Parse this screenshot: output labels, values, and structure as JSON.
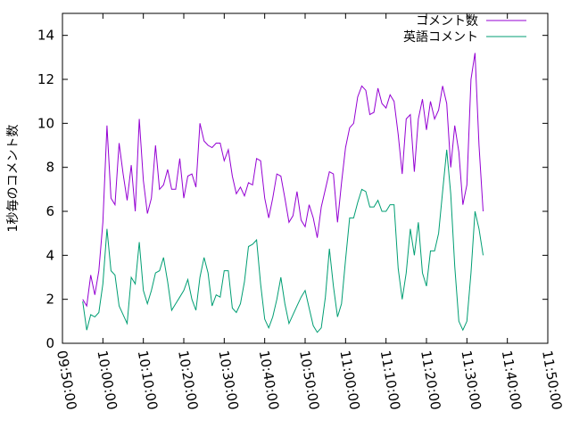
{
  "chart_data": {
    "type": "line",
    "ylabel": "1秒毎のコメント数",
    "xlabel": "",
    "ylim": [
      0,
      15
    ],
    "xlim": [
      "09:50:00",
      "11:50:00"
    ],
    "x_ticks": [
      "09:50:00",
      "10:00:00",
      "10:10:00",
      "10:20:00",
      "10:30:00",
      "10:40:00",
      "10:50:00",
      "11:00:00",
      "11:10:00",
      "11:20:00",
      "11:30:00",
      "11:40:00",
      "11:50:00"
    ],
    "y_ticks": [
      0,
      2,
      4,
      6,
      8,
      10,
      12,
      14
    ],
    "legend_position": "top-right",
    "grid": false,
    "series": [
      {
        "name": "コメント数",
        "color": "#9400d3",
        "points": [
          [
            "09:55:00",
            2.0
          ],
          [
            "09:56:00",
            1.7
          ],
          [
            "09:57:00",
            3.1
          ],
          [
            "09:58:00",
            2.2
          ],
          [
            "09:59:00",
            3.3
          ],
          [
            "10:00:00",
            5.5
          ],
          [
            "10:01:00",
            9.9
          ],
          [
            "10:02:00",
            6.6
          ],
          [
            "10:03:00",
            6.3
          ],
          [
            "10:04:00",
            9.1
          ],
          [
            "10:05:00",
            7.7
          ],
          [
            "10:06:00",
            6.5
          ],
          [
            "10:07:00",
            8.1
          ],
          [
            "10:08:00",
            6.0
          ],
          [
            "10:09:00",
            10.2
          ],
          [
            "10:10:00",
            7.4
          ],
          [
            "10:11:00",
            5.9
          ],
          [
            "10:12:00",
            6.6
          ],
          [
            "10:13:00",
            9.0
          ],
          [
            "10:14:00",
            7.0
          ],
          [
            "10:15:00",
            7.2
          ],
          [
            "10:16:00",
            7.9
          ],
          [
            "10:17:00",
            7.0
          ],
          [
            "10:18:00",
            7.0
          ],
          [
            "10:19:00",
            8.4
          ],
          [
            "10:20:00",
            6.6
          ],
          [
            "10:21:00",
            7.6
          ],
          [
            "10:22:00",
            7.7
          ],
          [
            "10:23:00",
            7.1
          ],
          [
            "10:24:00",
            10.0
          ],
          [
            "10:25:00",
            9.2
          ],
          [
            "10:26:00",
            9.0
          ],
          [
            "10:27:00",
            8.9
          ],
          [
            "10:28:00",
            9.1
          ],
          [
            "10:29:00",
            9.1
          ],
          [
            "10:30:00",
            8.3
          ],
          [
            "10:31:00",
            8.8
          ],
          [
            "10:32:00",
            7.6
          ],
          [
            "10:33:00",
            6.8
          ],
          [
            "10:34:00",
            7.1
          ],
          [
            "10:35:00",
            6.7
          ],
          [
            "10:36:00",
            7.3
          ],
          [
            "10:37:00",
            7.2
          ],
          [
            "10:38:00",
            8.4
          ],
          [
            "10:39:00",
            8.3
          ],
          [
            "10:40:00",
            6.6
          ],
          [
            "10:41:00",
            5.7
          ],
          [
            "10:42:00",
            6.6
          ],
          [
            "10:43:00",
            7.7
          ],
          [
            "10:44:00",
            7.6
          ],
          [
            "10:45:00",
            6.6
          ],
          [
            "10:46:00",
            5.5
          ],
          [
            "10:47:00",
            5.8
          ],
          [
            "10:48:00",
            6.9
          ],
          [
            "10:49:00",
            5.6
          ],
          [
            "10:50:00",
            5.3
          ],
          [
            "10:51:00",
            6.3
          ],
          [
            "10:52:00",
            5.7
          ],
          [
            "10:53:00",
            4.8
          ],
          [
            "10:54:00",
            6.2
          ],
          [
            "10:55:00",
            7.0
          ],
          [
            "10:56:00",
            7.8
          ],
          [
            "10:57:00",
            7.7
          ],
          [
            "10:58:00",
            5.5
          ],
          [
            "10:59:00",
            7.3
          ],
          [
            "11:00:00",
            8.9
          ],
          [
            "11:01:00",
            9.8
          ],
          [
            "11:02:00",
            10.0
          ],
          [
            "11:03:00",
            11.2
          ],
          [
            "11:04:00",
            11.7
          ],
          [
            "11:05:00",
            11.5
          ],
          [
            "11:06:00",
            10.4
          ],
          [
            "11:07:00",
            10.5
          ],
          [
            "11:08:00",
            11.6
          ],
          [
            "11:09:00",
            10.9
          ],
          [
            "11:10:00",
            10.7
          ],
          [
            "11:11:00",
            11.3
          ],
          [
            "11:12:00",
            11.0
          ],
          [
            "11:13:00",
            9.5
          ],
          [
            "11:14:00",
            7.7
          ],
          [
            "11:15:00",
            10.2
          ],
          [
            "11:16:00",
            10.4
          ],
          [
            "11:17:00",
            7.8
          ],
          [
            "11:18:00",
            10.2
          ],
          [
            "11:19:00",
            11.1
          ],
          [
            "11:20:00",
            9.7
          ],
          [
            "11:21:00",
            11.0
          ],
          [
            "11:22:00",
            10.2
          ],
          [
            "11:23:00",
            10.6
          ],
          [
            "11:24:00",
            11.7
          ],
          [
            "11:25:00",
            10.9
          ],
          [
            "11:26:00",
            8.0
          ],
          [
            "11:27:00",
            9.9
          ],
          [
            "11:28:00",
            8.7
          ],
          [
            "11:29:00",
            6.3
          ],
          [
            "11:30:00",
            7.2
          ],
          [
            "11:31:00",
            12.0
          ],
          [
            "11:32:00",
            13.2
          ],
          [
            "11:33:00",
            9.0
          ],
          [
            "11:34:00",
            6.0
          ]
        ]
      },
      {
        "name": "英語コメント",
        "color": "#009e73",
        "points": [
          [
            "09:55:00",
            1.9
          ],
          [
            "09:56:00",
            0.6
          ],
          [
            "09:57:00",
            1.3
          ],
          [
            "09:58:00",
            1.2
          ],
          [
            "09:59:00",
            1.4
          ],
          [
            "10:00:00",
            2.7
          ],
          [
            "10:01:00",
            5.2
          ],
          [
            "10:02:00",
            3.3
          ],
          [
            "10:03:00",
            3.1
          ],
          [
            "10:04:00",
            1.7
          ],
          [
            "10:05:00",
            1.3
          ],
          [
            "10:06:00",
            0.9
          ],
          [
            "10:07:00",
            3.0
          ],
          [
            "10:08:00",
            2.7
          ],
          [
            "10:09:00",
            4.6
          ],
          [
            "10:10:00",
            2.4
          ],
          [
            "10:11:00",
            1.8
          ],
          [
            "10:12:00",
            2.4
          ],
          [
            "10:13:00",
            3.2
          ],
          [
            "10:14:00",
            3.3
          ],
          [
            "10:15:00",
            3.9
          ],
          [
            "10:16:00",
            2.8
          ],
          [
            "10:17:00",
            1.5
          ],
          [
            "10:18:00",
            1.8
          ],
          [
            "10:19:00",
            2.1
          ],
          [
            "10:20:00",
            2.4
          ],
          [
            "10:21:00",
            2.9
          ],
          [
            "10:22:00",
            2.0
          ],
          [
            "10:23:00",
            1.5
          ],
          [
            "10:24:00",
            3.0
          ],
          [
            "10:25:00",
            3.9
          ],
          [
            "10:26:00",
            3.2
          ],
          [
            "10:27:00",
            1.7
          ],
          [
            "10:28:00",
            2.2
          ],
          [
            "10:29:00",
            2.1
          ],
          [
            "10:30:00",
            3.3
          ],
          [
            "10:31:00",
            3.3
          ],
          [
            "10:32:00",
            1.6
          ],
          [
            "10:33:00",
            1.4
          ],
          [
            "10:34:00",
            1.8
          ],
          [
            "10:35:00",
            2.8
          ],
          [
            "10:36:00",
            4.4
          ],
          [
            "10:37:00",
            4.5
          ],
          [
            "10:38:00",
            4.7
          ],
          [
            "10:39:00",
            2.7
          ],
          [
            "10:40:00",
            1.1
          ],
          [
            "10:41:00",
            0.7
          ],
          [
            "10:42:00",
            1.2
          ],
          [
            "10:43:00",
            2.0
          ],
          [
            "10:44:00",
            3.0
          ],
          [
            "10:45:00",
            1.8
          ],
          [
            "10:46:00",
            0.9
          ],
          [
            "10:47:00",
            1.3
          ],
          [
            "10:48:00",
            1.7
          ],
          [
            "10:49:00",
            2.1
          ],
          [
            "10:50:00",
            2.4
          ],
          [
            "10:51:00",
            1.6
          ],
          [
            "10:52:00",
            0.8
          ],
          [
            "10:53:00",
            0.5
          ],
          [
            "10:54:00",
            0.7
          ],
          [
            "10:55:00",
            2.1
          ],
          [
            "10:56:00",
            4.3
          ],
          [
            "10:57:00",
            2.6
          ],
          [
            "10:58:00",
            1.2
          ],
          [
            "10:59:00",
            1.8
          ],
          [
            "11:00:00",
            3.8
          ],
          [
            "11:01:00",
            5.7
          ],
          [
            "11:02:00",
            5.7
          ],
          [
            "11:03:00",
            6.4
          ],
          [
            "11:04:00",
            7.0
          ],
          [
            "11:05:00",
            6.9
          ],
          [
            "11:06:00",
            6.2
          ],
          [
            "11:07:00",
            6.2
          ],
          [
            "11:08:00",
            6.5
          ],
          [
            "11:09:00",
            6.0
          ],
          [
            "11:10:00",
            6.0
          ],
          [
            "11:11:00",
            6.3
          ],
          [
            "11:12:00",
            6.3
          ],
          [
            "11:13:00",
            3.4
          ],
          [
            "11:14:00",
            2.0
          ],
          [
            "11:15:00",
            3.2
          ],
          [
            "11:16:00",
            5.2
          ],
          [
            "11:17:00",
            4.0
          ],
          [
            "11:18:00",
            5.5
          ],
          [
            "11:19:00",
            3.2
          ],
          [
            "11:20:00",
            2.6
          ],
          [
            "11:21:00",
            4.2
          ],
          [
            "11:22:00",
            4.2
          ],
          [
            "11:23:00",
            5.0
          ],
          [
            "11:24:00",
            6.9
          ],
          [
            "11:25:00",
            8.8
          ],
          [
            "11:26:00",
            6.8
          ],
          [
            "11:27:00",
            3.5
          ],
          [
            "11:28:00",
            1.0
          ],
          [
            "11:29:00",
            0.6
          ],
          [
            "11:30:00",
            1.0
          ],
          [
            "11:31:00",
            3.2
          ],
          [
            "11:32:00",
            6.0
          ],
          [
            "11:33:00",
            5.2
          ],
          [
            "11:34:00",
            4.0
          ]
        ]
      }
    ]
  }
}
